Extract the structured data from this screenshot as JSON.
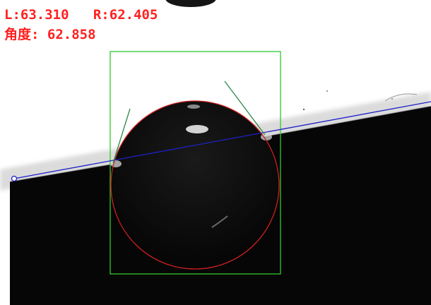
{
  "measurement": {
    "left_label": "L:",
    "left_value": "63.310",
    "right_label": "R:",
    "right_value": "62.405",
    "angle_label": "角度:",
    "angle_value": "62.858"
  },
  "overlay_colors": {
    "text": "#ff2020",
    "roi_box": "#2ec82e",
    "drop_fit_circle": "#d02020",
    "baseline": "#2020c8",
    "tangent_lines": "#2d8a4a"
  }
}
